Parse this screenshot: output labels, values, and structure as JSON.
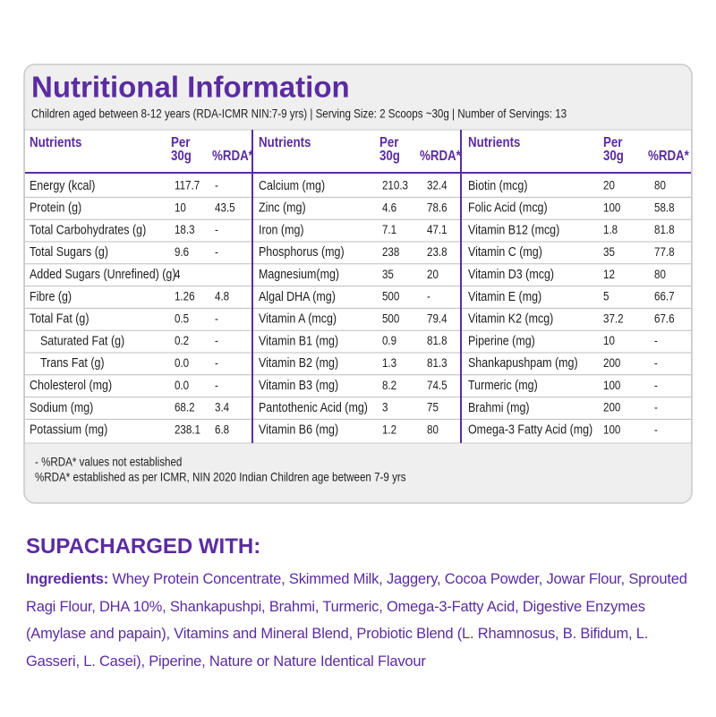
{
  "title": "Nutritional Information",
  "subtitle": "Children aged between 8-12 years (RDA-ICMR NIN:7-9 yrs) | Serving Size: 2 Scoops ~30g | Number of Servings: 13",
  "table": {
    "headers": [
      [
        "Nutrients"
      ],
      [
        "Per",
        "30g"
      ],
      [
        "%RDA*"
      ]
    ],
    "groups": [
      [
        [
          "Energy (kcal)",
          "117.7",
          "-"
        ],
        [
          "Protein (g)",
          "10",
          "43.5"
        ],
        [
          "Total Carbohydrates (g)",
          "18.3",
          "-"
        ],
        [
          "Total Sugars (g)",
          "9.6",
          "-"
        ],
        [
          "Added Sugars (Unrefined) (g)",
          "4",
          ""
        ],
        [
          "Fibre (g)",
          "1.26",
          "4.8"
        ],
        [
          "Total Fat (g)",
          "0.5",
          "-"
        ],
        [
          "Saturated Fat (g)",
          "0.2",
          "-"
        ],
        [
          "Trans Fat (g)",
          "0.0",
          "-"
        ],
        [
          "Cholesterol (mg)",
          "0.0",
          "-"
        ],
        [
          "Sodium (mg)",
          "68.2",
          "3.4"
        ],
        [
          "Potassium (mg)",
          "238.1",
          "6.8"
        ]
      ],
      [
        [
          "Calcium (mg)",
          "210.3",
          "32.4"
        ],
        [
          "Zinc (mg)",
          "4.6",
          "78.6"
        ],
        [
          "Iron (mg)",
          "7.1",
          "47.1"
        ],
        [
          "Phosphorus (mg)",
          "238",
          "23.8"
        ],
        [
          "Magnesium(mg)",
          "35",
          "20"
        ],
        [
          "Algal DHA (mg)",
          "500",
          "-"
        ],
        [
          "Vitamin A (mcg)",
          "500",
          "79.4"
        ],
        [
          "Vitamin B1 (mg)",
          "0.9",
          "81.8"
        ],
        [
          "Vitamin B2 (mg)",
          "1.3",
          "81.3"
        ],
        [
          "Vitamin B3 (mg)",
          "8.2",
          "74.5"
        ],
        [
          "Pantothenic Acid (mg)",
          "3",
          "75"
        ],
        [
          "Vitamin B6 (mg)",
          "1.2",
          "80"
        ]
      ],
      [
        [
          "Biotin (mcg)",
          "20",
          "80"
        ],
        [
          "Folic Acid (mcg)",
          "100",
          "58.8"
        ],
        [
          "Vitamin B12 (mcg)",
          "1.8",
          "81.8"
        ],
        [
          "Vitamin C (mg)",
          "35",
          "77.8"
        ],
        [
          "Vitamin D3 (mcg)",
          "12",
          "80"
        ],
        [
          "Vitamin E (mg)",
          "5",
          "66.7"
        ],
        [
          "Vitamin K2 (mcg)",
          "37.2",
          "67.6"
        ],
        [
          "Piperine (mg)",
          "10",
          "-"
        ],
        [
          "Shankapushpam (mg)",
          "200",
          "-"
        ],
        [
          "Turmeric (mg)",
          "100",
          "-"
        ],
        [
          "Brahmi (mg)",
          "200",
          "-"
        ],
        [
          "Omega-3 Fatty Acid (mg)",
          "100",
          "-"
        ]
      ]
    ]
  },
  "footnotes": [
    "- %RDA* values not established",
    "%RDA* established as per ICMR, NIN 2020 Indian Children age between 7-9 yrs"
  ],
  "section_title": "SUPACHARGED WITH:",
  "ingredients": {
    "label": "Ingredients:",
    "text": "Whey Protein Concentrate, Skimmed Milk, Jaggery, Cocoa  Powder, Jowar Flour, Sprouted Ragi Flour, DHA 10%, Shankapushpi, Brahmi, Turmeric, Omega-3-Fatty Acid, Digestive Enzymes (Amylase and papain), Vitamins and Mineral Blend, Probiotic Blend (L. Rhamnosus, B. Bifidum, L. Gasseri, L. Casei), Piperine, Nature or Nature Identical Flavour"
  }
}
